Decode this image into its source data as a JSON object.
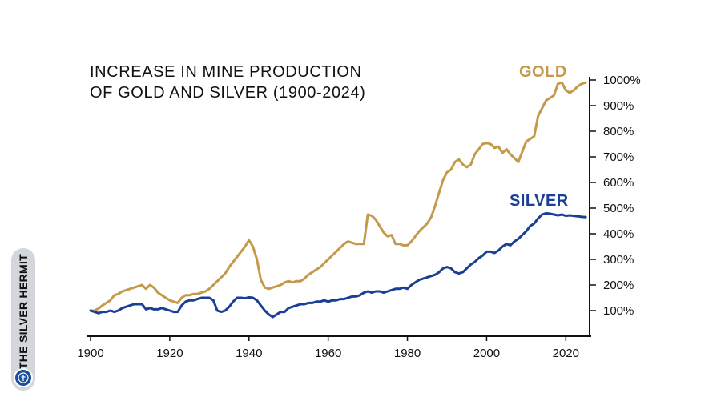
{
  "chart_data": {
    "type": "line",
    "title": "INCREASE IN MINE PRODUCTION OF GOLD AND SILVER (1900-2024)",
    "title_lines": [
      "INCREASE IN MINE PRODUCTION",
      "OF GOLD AND SILVER (1900-2024)"
    ],
    "x_ticks": [
      1900,
      1920,
      1940,
      1960,
      1980,
      2000,
      2020
    ],
    "y_ticks": [
      100,
      200,
      300,
      400,
      500,
      600,
      700,
      800,
      900,
      1000
    ],
    "y_tick_labels": [
      "100%",
      "200%",
      "300%",
      "400%",
      "500%",
      "600%",
      "700%",
      "800%",
      "900%",
      "1000%"
    ],
    "xlim": [
      1900,
      2026
    ],
    "ylim": [
      0,
      1000
    ],
    "series": [
      {
        "name": "GOLD",
        "color": "#c49a4a",
        "points": [
          [
            1900,
            100
          ],
          [
            1901,
            100
          ],
          [
            1902,
            108
          ],
          [
            1903,
            120
          ],
          [
            1904,
            130
          ],
          [
            1905,
            140
          ],
          [
            1906,
            160
          ],
          [
            1907,
            165
          ],
          [
            1908,
            175
          ],
          [
            1909,
            180
          ],
          [
            1910,
            185
          ],
          [
            1911,
            190
          ],
          [
            1912,
            195
          ],
          [
            1913,
            200
          ],
          [
            1914,
            185
          ],
          [
            1915,
            200
          ],
          [
            1916,
            190
          ],
          [
            1917,
            170
          ],
          [
            1918,
            160
          ],
          [
            1919,
            150
          ],
          [
            1920,
            140
          ],
          [
            1921,
            135
          ],
          [
            1922,
            130
          ],
          [
            1923,
            150
          ],
          [
            1924,
            160
          ],
          [
            1925,
            160
          ],
          [
            1926,
            165
          ],
          [
            1927,
            165
          ],
          [
            1928,
            170
          ],
          [
            1929,
            175
          ],
          [
            1930,
            185
          ],
          [
            1931,
            200
          ],
          [
            1932,
            215
          ],
          [
            1933,
            230
          ],
          [
            1934,
            245
          ],
          [
            1935,
            270
          ],
          [
            1936,
            290
          ],
          [
            1937,
            310
          ],
          [
            1938,
            330
          ],
          [
            1939,
            350
          ],
          [
            1940,
            375
          ],
          [
            1941,
            350
          ],
          [
            1942,
            300
          ],
          [
            1943,
            220
          ],
          [
            1944,
            190
          ],
          [
            1945,
            185
          ],
          [
            1946,
            190
          ],
          [
            1947,
            195
          ],
          [
            1948,
            200
          ],
          [
            1949,
            210
          ],
          [
            1950,
            215
          ],
          [
            1951,
            210
          ],
          [
            1952,
            215
          ],
          [
            1953,
            215
          ],
          [
            1954,
            225
          ],
          [
            1955,
            240
          ],
          [
            1956,
            250
          ],
          [
            1957,
            260
          ],
          [
            1958,
            270
          ],
          [
            1959,
            285
          ],
          [
            1960,
            300
          ],
          [
            1961,
            315
          ],
          [
            1962,
            330
          ],
          [
            1963,
            345
          ],
          [
            1964,
            360
          ],
          [
            1965,
            370
          ],
          [
            1966,
            365
          ],
          [
            1967,
            360
          ],
          [
            1968,
            360
          ],
          [
            1969,
            360
          ],
          [
            1970,
            475
          ],
          [
            1971,
            470
          ],
          [
            1972,
            455
          ],
          [
            1973,
            430
          ],
          [
            1974,
            405
          ],
          [
            1975,
            390
          ],
          [
            1976,
            395
          ],
          [
            1977,
            360
          ],
          [
            1978,
            360
          ],
          [
            1979,
            355
          ],
          [
            1980,
            355
          ],
          [
            1981,
            370
          ],
          [
            1982,
            390
          ],
          [
            1983,
            410
          ],
          [
            1984,
            425
          ],
          [
            1985,
            440
          ],
          [
            1986,
            465
          ],
          [
            1987,
            510
          ],
          [
            1988,
            560
          ],
          [
            1989,
            610
          ],
          [
            1990,
            640
          ],
          [
            1991,
            650
          ],
          [
            1992,
            680
          ],
          [
            1993,
            690
          ],
          [
            1994,
            670
          ],
          [
            1995,
            660
          ],
          [
            1996,
            670
          ],
          [
            1997,
            710
          ],
          [
            1998,
            730
          ],
          [
            1999,
            750
          ],
          [
            2000,
            755
          ],
          [
            2001,
            750
          ],
          [
            2002,
            735
          ],
          [
            2003,
            740
          ],
          [
            2004,
            715
          ],
          [
            2005,
            730
          ],
          [
            2006,
            710
          ],
          [
            2007,
            695
          ],
          [
            2008,
            680
          ],
          [
            2009,
            720
          ],
          [
            2010,
            760
          ],
          [
            2011,
            770
          ],
          [
            2012,
            780
          ],
          [
            2013,
            860
          ],
          [
            2014,
            890
          ],
          [
            2015,
            920
          ],
          [
            2016,
            930
          ],
          [
            2017,
            940
          ],
          [
            2018,
            985
          ],
          [
            2019,
            990
          ],
          [
            2020,
            960
          ],
          [
            2021,
            950
          ],
          [
            2022,
            960
          ],
          [
            2023,
            975
          ],
          [
            2024,
            985
          ],
          [
            2025,
            990
          ]
        ]
      },
      {
        "name": "SILVER",
        "color": "#1b3f94",
        "points": [
          [
            1900,
            100
          ],
          [
            1901,
            95
          ],
          [
            1902,
            90
          ],
          [
            1903,
            95
          ],
          [
            1904,
            95
          ],
          [
            1905,
            100
          ],
          [
            1906,
            95
          ],
          [
            1907,
            100
          ],
          [
            1908,
            110
          ],
          [
            1909,
            115
          ],
          [
            1910,
            120
          ],
          [
            1911,
            125
          ],
          [
            1912,
            125
          ],
          [
            1913,
            125
          ],
          [
            1914,
            105
          ],
          [
            1915,
            110
          ],
          [
            1916,
            105
          ],
          [
            1917,
            105
          ],
          [
            1918,
            110
          ],
          [
            1919,
            105
          ],
          [
            1920,
            100
          ],
          [
            1921,
            95
          ],
          [
            1922,
            95
          ],
          [
            1923,
            120
          ],
          [
            1924,
            135
          ],
          [
            1925,
            140
          ],
          [
            1926,
            140
          ],
          [
            1927,
            145
          ],
          [
            1928,
            150
          ],
          [
            1929,
            150
          ],
          [
            1930,
            150
          ],
          [
            1931,
            140
          ],
          [
            1932,
            100
          ],
          [
            1933,
            95
          ],
          [
            1934,
            100
          ],
          [
            1935,
            115
          ],
          [
            1936,
            135
          ],
          [
            1937,
            150
          ],
          [
            1938,
            150
          ],
          [
            1939,
            148
          ],
          [
            1940,
            152
          ],
          [
            1941,
            150
          ],
          [
            1942,
            140
          ],
          [
            1943,
            120
          ],
          [
            1944,
            100
          ],
          [
            1945,
            85
          ],
          [
            1946,
            75
          ],
          [
            1947,
            85
          ],
          [
            1948,
            95
          ],
          [
            1949,
            95
          ],
          [
            1950,
            110
          ],
          [
            1951,
            115
          ],
          [
            1952,
            120
          ],
          [
            1953,
            125
          ],
          [
            1954,
            125
          ],
          [
            1955,
            130
          ],
          [
            1956,
            130
          ],
          [
            1957,
            135
          ],
          [
            1958,
            135
          ],
          [
            1959,
            140
          ],
          [
            1960,
            135
          ],
          [
            1961,
            140
          ],
          [
            1962,
            140
          ],
          [
            1963,
            145
          ],
          [
            1964,
            145
          ],
          [
            1965,
            150
          ],
          [
            1966,
            155
          ],
          [
            1967,
            155
          ],
          [
            1968,
            160
          ],
          [
            1969,
            170
          ],
          [
            1970,
            175
          ],
          [
            1971,
            170
          ],
          [
            1972,
            175
          ],
          [
            1973,
            175
          ],
          [
            1974,
            170
          ],
          [
            1975,
            175
          ],
          [
            1976,
            180
          ],
          [
            1977,
            185
          ],
          [
            1978,
            185
          ],
          [
            1979,
            190
          ],
          [
            1980,
            185
          ],
          [
            1981,
            200
          ],
          [
            1982,
            210
          ],
          [
            1983,
            220
          ],
          [
            1984,
            225
          ],
          [
            1985,
            230
          ],
          [
            1986,
            235
          ],
          [
            1987,
            240
          ],
          [
            1988,
            250
          ],
          [
            1989,
            265
          ],
          [
            1990,
            270
          ],
          [
            1991,
            265
          ],
          [
            1992,
            250
          ],
          [
            1993,
            245
          ],
          [
            1994,
            250
          ],
          [
            1995,
            265
          ],
          [
            1996,
            280
          ],
          [
            1997,
            290
          ],
          [
            1998,
            305
          ],
          [
            1999,
            315
          ],
          [
            2000,
            330
          ],
          [
            2001,
            330
          ],
          [
            2002,
            325
          ],
          [
            2003,
            335
          ],
          [
            2004,
            350
          ],
          [
            2005,
            360
          ],
          [
            2006,
            355
          ],
          [
            2007,
            370
          ],
          [
            2008,
            380
          ],
          [
            2009,
            395
          ],
          [
            2010,
            410
          ],
          [
            2011,
            430
          ],
          [
            2012,
            440
          ],
          [
            2013,
            460
          ],
          [
            2014,
            475
          ],
          [
            2015,
            480
          ],
          [
            2016,
            478
          ],
          [
            2017,
            475
          ],
          [
            2018,
            472
          ],
          [
            2019,
            475
          ],
          [
            2020,
            470
          ],
          [
            2021,
            472
          ],
          [
            2022,
            470
          ],
          [
            2023,
            468
          ],
          [
            2024,
            466
          ],
          [
            2025,
            465
          ]
        ]
      }
    ]
  },
  "branding": {
    "text": "THE SILVER HERMIT",
    "logo": "hermit-logo-icon"
  },
  "colors": {
    "gold": "#c49a4a",
    "silver": "#1b3f94",
    "axis": "#111111",
    "badge_bg": "#d3d6da"
  }
}
